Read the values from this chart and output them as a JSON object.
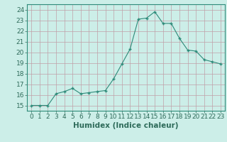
{
  "x": [
    0,
    1,
    2,
    3,
    4,
    5,
    6,
    7,
    8,
    9,
    10,
    11,
    12,
    13,
    14,
    15,
    16,
    17,
    18,
    19,
    20,
    21,
    22,
    23
  ],
  "y": [
    15.0,
    15.0,
    15.0,
    16.1,
    16.3,
    16.6,
    16.1,
    16.2,
    16.3,
    16.4,
    17.5,
    18.9,
    20.3,
    23.1,
    23.2,
    23.8,
    22.7,
    22.7,
    21.3,
    20.2,
    20.1,
    19.3,
    19.1,
    18.9
  ],
  "xlim": [
    -0.5,
    23.5
  ],
  "ylim": [
    14.5,
    24.5
  ],
  "yticks": [
    15,
    16,
    17,
    18,
    19,
    20,
    21,
    22,
    23,
    24
  ],
  "xticks": [
    0,
    1,
    2,
    3,
    4,
    5,
    6,
    7,
    8,
    9,
    10,
    11,
    12,
    13,
    14,
    15,
    16,
    17,
    18,
    19,
    20,
    21,
    22,
    23
  ],
  "xlabel": "Humidex (Indice chaleur)",
  "line_color": "#2e8b7a",
  "marker_color": "#2e8b7a",
  "bg_color": "#cceee8",
  "grid_color": "#c0a0a8",
  "font_color": "#2e6b5a",
  "tick_fontsize": 6.5,
  "xlabel_fontsize": 7.5
}
